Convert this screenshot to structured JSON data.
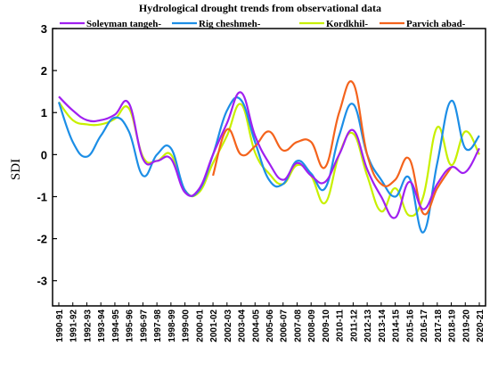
{
  "chart_data": {
    "type": "line",
    "title": "Hydrological drought trends from observational data",
    "ylabel": "SDI",
    "xlabel": "",
    "ylim": [
      -3.6,
      3
    ],
    "yticks": [
      -3,
      -2,
      -1,
      0,
      1,
      2,
      3
    ],
    "grid": false,
    "legend_position": "top",
    "categories": [
      "1990-91",
      "1991-92",
      "1992-93",
      "1993-94",
      "1994-95",
      "1995-96",
      "1996-97",
      "1997-98",
      "1998-99",
      "1999-00",
      "2000-01",
      "2001-02",
      "2002-03",
      "2003-04",
      "2004-05",
      "2005-06",
      "2006-07",
      "2007-08",
      "2008-09",
      "2009-10",
      "2010-11",
      "2011-12",
      "2012-13",
      "2013-14",
      "2014-15",
      "2015-16",
      "2016-17",
      "2017-18",
      "2018-19",
      "2019-20",
      "2020-21"
    ],
    "series": [
      {
        "name": "Soleyman tangeh",
        "color": "#a020f0",
        "values": [
          1.38,
          1.05,
          0.82,
          0.82,
          0.95,
          1.22,
          -0.1,
          -0.15,
          -0.1,
          -0.9,
          -0.82,
          0.0,
          0.75,
          1.48,
          0.45,
          -0.2,
          -0.6,
          -0.2,
          -0.5,
          -0.65,
          0.0,
          0.58,
          -0.35,
          -1.0,
          -1.5,
          -0.65,
          -1.3,
          -0.7,
          -0.3,
          -0.42,
          0.15
        ]
      },
      {
        "name": "Rig cheshmeh",
        "color": "#1c8ee6",
        "values": [
          1.25,
          0.3,
          -0.05,
          0.45,
          0.88,
          0.55,
          -0.5,
          0.0,
          0.15,
          -0.85,
          -0.85,
          0.0,
          1.05,
          1.3,
          0.3,
          -0.6,
          -0.7,
          -0.15,
          -0.45,
          -0.8,
          0.45,
          1.2,
          0.0,
          -0.6,
          -1.0,
          -0.55,
          -1.85,
          -0.2,
          1.28,
          0.15,
          0.45
        ]
      },
      {
        "name": "Kordkhil",
        "color": "#c8f000",
        "values": [
          1.25,
          0.82,
          0.72,
          0.72,
          0.85,
          1.1,
          -0.05,
          -0.15,
          0.0,
          -0.85,
          -0.9,
          -0.2,
          0.45,
          1.2,
          0.05,
          -0.45,
          -0.7,
          -0.25,
          -0.5,
          -1.15,
          0.0,
          0.5,
          -0.5,
          -1.35,
          -0.8,
          -1.45,
          -1.0,
          0.65,
          -0.25,
          0.55,
          0.0
        ]
      },
      {
        "name": "Parvich abad",
        "color": "#f4631c",
        "values": [
          null,
          null,
          null,
          null,
          null,
          null,
          null,
          null,
          null,
          null,
          null,
          -0.5,
          0.6,
          0.0,
          0.2,
          0.55,
          0.1,
          0.3,
          0.3,
          -0.3,
          1.0,
          1.7,
          0.0,
          -0.7,
          -0.6,
          -0.1,
          -1.4,
          -0.8,
          -0.3,
          null,
          null
        ]
      }
    ]
  }
}
